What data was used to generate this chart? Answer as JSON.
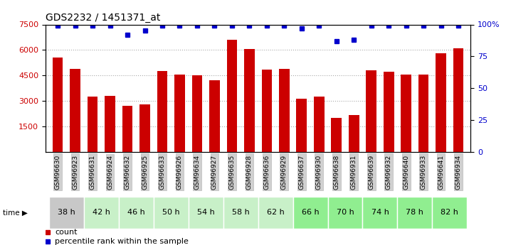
{
  "title": "GDS2232 / 1451371_at",
  "samples": [
    "GSM96630",
    "GSM96923",
    "GSM96631",
    "GSM96924",
    "GSM96632",
    "GSM96925",
    "GSM96633",
    "GSM96926",
    "GSM96634",
    "GSM96927",
    "GSM96635",
    "GSM96928",
    "GSM96636",
    "GSM96929",
    "GSM96637",
    "GSM96930",
    "GSM96638",
    "GSM96931",
    "GSM96639",
    "GSM96932",
    "GSM96640",
    "GSM96933",
    "GSM96641",
    "GSM96934"
  ],
  "counts": [
    5550,
    4900,
    3250,
    3300,
    2700,
    2800,
    4750,
    4550,
    4500,
    4200,
    6600,
    6050,
    4850,
    4900,
    3150,
    3250,
    2000,
    2150,
    4800,
    4700,
    4550,
    4550,
    5800,
    6100
  ],
  "percentile_ranks": [
    99,
    99,
    99,
    99,
    92,
    95,
    99,
    99,
    99,
    99,
    99,
    99,
    99,
    99,
    97,
    99,
    87,
    88,
    99,
    99,
    99,
    99,
    99,
    99
  ],
  "time_groups": [
    {
      "label": "38 h",
      "indices": [
        0,
        1
      ],
      "color": "#c8c8c8"
    },
    {
      "label": "42 h",
      "indices": [
        2,
        3
      ],
      "color": "#c8f0c8"
    },
    {
      "label": "46 h",
      "indices": [
        4,
        5
      ],
      "color": "#c8f0c8"
    },
    {
      "label": "50 h",
      "indices": [
        6,
        7
      ],
      "color": "#c8f0c8"
    },
    {
      "label": "54 h",
      "indices": [
        8,
        9
      ],
      "color": "#c8f0c8"
    },
    {
      "label": "58 h",
      "indices": [
        10,
        11
      ],
      "color": "#c8f0c8"
    },
    {
      "label": "62 h",
      "indices": [
        12,
        13
      ],
      "color": "#c8f0c8"
    },
    {
      "label": "66 h",
      "indices": [
        14,
        15
      ],
      "color": "#90ee90"
    },
    {
      "label": "70 h",
      "indices": [
        16,
        17
      ],
      "color": "#90ee90"
    },
    {
      "label": "74 h",
      "indices": [
        18,
        19
      ],
      "color": "#90ee90"
    },
    {
      "label": "78 h",
      "indices": [
        20,
        21
      ],
      "color": "#90ee90"
    },
    {
      "label": "82 h",
      "indices": [
        22,
        23
      ],
      "color": "#90ee90"
    }
  ],
  "ylim_left": [
    0,
    7500
  ],
  "ylim_right": [
    0,
    100
  ],
  "yticks_left": [
    1500,
    3000,
    4500,
    6000,
    7500
  ],
  "yticks_right": [
    0,
    25,
    50,
    75,
    100
  ],
  "ytick_right_labels": [
    "0",
    "25",
    "50",
    "75",
    "100%"
  ],
  "bar_color": "#cc0000",
  "dot_color": "#0000cc",
  "grid_color": "#aaaaaa",
  "bg_color": "#ffffff",
  "sample_bg_color": "#d0d0d0"
}
